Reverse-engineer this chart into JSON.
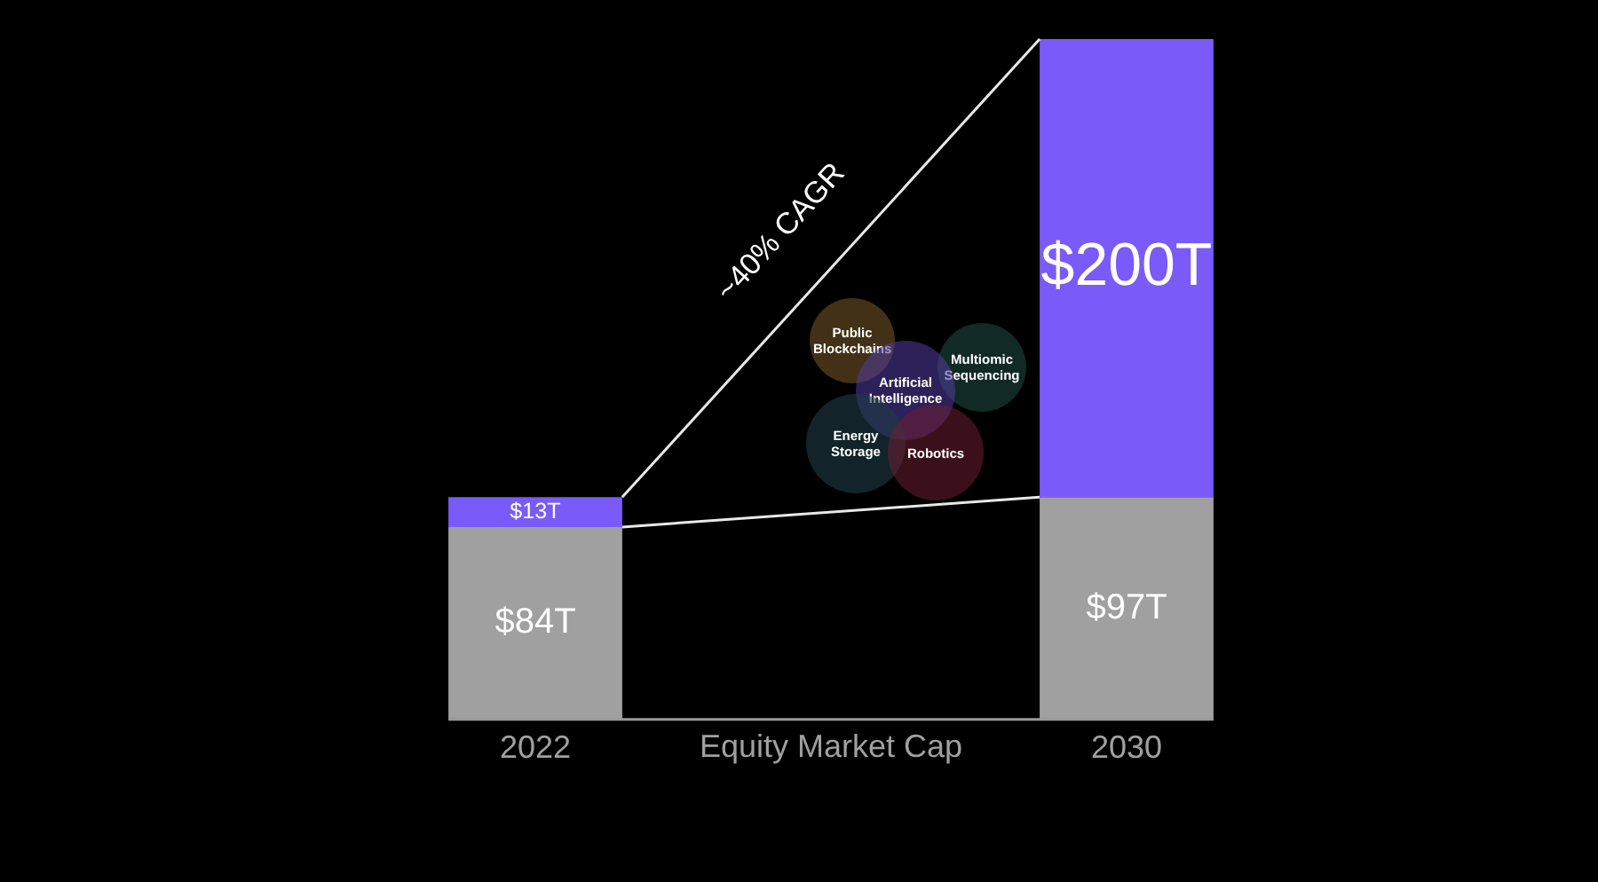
{
  "chart_data": {
    "type": "bar",
    "xlabel": "Equity Market Cap",
    "categories": [
      "2022",
      "2030"
    ],
    "series": [
      {
        "color": "#a0a0a0",
        "values": [
          84,
          97
        ],
        "value_labels": [
          "$84T",
          "$97T"
        ]
      },
      {
        "color": "#7a5af8",
        "values": [
          13,
          200
        ],
        "value_labels": [
          "$13T",
          "$200T"
        ]
      }
    ],
    "annotations": [
      "~40% CAGR",
      "Public Blockchains",
      "Multiomic Sequencing",
      "Artificial Intelligence",
      "Energy Storage",
      "Robotics"
    ],
    "stacked": true
  }
}
